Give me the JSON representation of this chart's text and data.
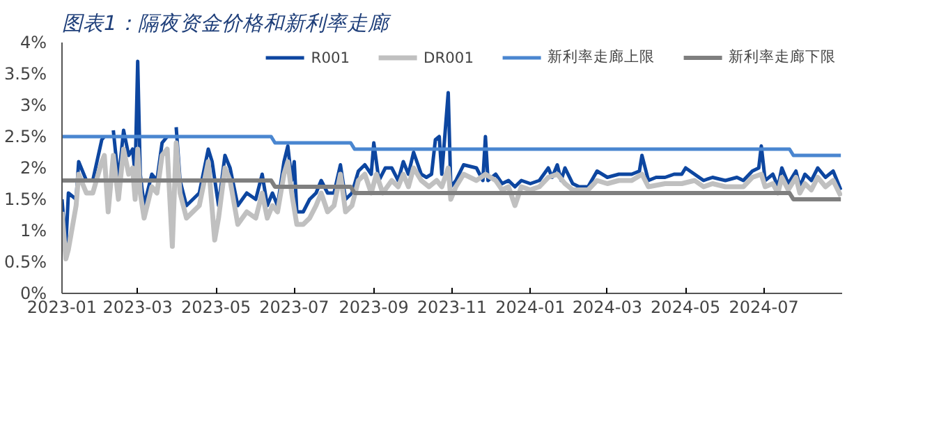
{
  "chart_data": {
    "type": "line",
    "title": "图表1：隔夜资金价格和新利率走廊",
    "xlim": [
      "2023-01-01",
      "2024-08-31"
    ],
    "xticks": [
      "2023-01",
      "2023-03",
      "2023-05",
      "2023-07",
      "2023-09",
      "2023-11",
      "2024-01",
      "2024-03",
      "2024-05",
      "2024-07"
    ],
    "ylim": [
      0,
      4
    ],
    "yticks": [
      {
        "value": 0,
        "label": "0%"
      },
      {
        "value": 0.5,
        "label": "0.5%"
      },
      {
        "value": 1,
        "label": "1%"
      },
      {
        "value": 1.5,
        "label": "1.5%"
      },
      {
        "value": 2,
        "label": "2%"
      },
      {
        "value": 2.5,
        "label": "2.5%"
      },
      {
        "value": 3,
        "label": "3%"
      },
      {
        "value": 3.5,
        "label": "3.5%"
      },
      {
        "value": 4,
        "label": "4%"
      }
    ],
    "grid": false,
    "legend": "top",
    "marker": "none",
    "line_style": "solid",
    "series": [
      {
        "name": "R001",
        "color": "#0d46a0",
        "x": [
          "2023-01-01",
          "2023-01-04",
          "2023-01-06",
          "2023-01-12",
          "2023-01-14",
          "2023-01-20",
          "2023-01-25",
          "2023-02-01",
          "2023-02-03",
          "2023-02-06",
          "2023-02-10",
          "2023-02-14",
          "2023-02-18",
          "2023-02-22",
          "2023-02-25",
          "2023-02-27",
          "2023-03-01",
          "2023-03-03",
          "2023-03-06",
          "2023-03-12",
          "2023-03-16",
          "2023-03-20",
          "2023-03-24",
          "2023-03-28",
          "2023-03-31",
          "2023-04-03",
          "2023-04-08",
          "2023-04-13",
          "2023-04-18",
          "2023-04-25",
          "2023-04-28",
          "2023-05-03",
          "2023-05-08",
          "2023-05-12",
          "2023-05-18",
          "2023-05-25",
          "2023-06-01",
          "2023-06-06",
          "2023-06-10",
          "2023-06-14",
          "2023-06-18",
          "2023-06-23",
          "2023-06-26",
          "2023-06-29",
          "2023-07-01",
          "2023-07-03",
          "2023-07-08",
          "2023-07-13",
          "2023-07-18",
          "2023-07-22",
          "2023-07-27",
          "2023-08-01",
          "2023-08-06",
          "2023-08-10",
          "2023-08-15",
          "2023-08-20",
          "2023-08-25",
          "2023-08-30",
          "2023-09-01",
          "2023-09-05",
          "2023-09-10",
          "2023-09-15",
          "2023-09-20",
          "2023-09-24",
          "2023-09-28",
          "2023-10-02",
          "2023-10-08",
          "2023-10-12",
          "2023-10-16",
          "2023-10-19",
          "2023-10-22",
          "2023-10-24",
          "2023-10-29",
          "2023-10-31",
          "2023-11-04",
          "2023-11-10",
          "2023-11-20",
          "2023-11-25",
          "2023-11-27",
          "2023-11-29",
          "2023-12-05",
          "2023-12-10",
          "2023-12-15",
          "2023-12-20",
          "2023-12-25",
          "2024-01-01",
          "2024-01-08",
          "2024-01-15",
          "2024-01-18",
          "2024-01-22",
          "2024-01-25",
          "2024-01-28",
          "2024-02-03",
          "2024-02-08",
          "2024-02-15",
          "2024-02-22",
          "2024-03-01",
          "2024-03-10",
          "2024-03-20",
          "2024-03-26",
          "2024-03-28",
          "2024-04-02",
          "2024-04-08",
          "2024-04-15",
          "2024-04-22",
          "2024-04-28",
          "2024-05-01",
          "2024-05-08",
          "2024-05-15",
          "2024-05-22",
          "2024-06-01",
          "2024-06-10",
          "2024-06-15",
          "2024-06-22",
          "2024-06-27",
          "2024-06-29",
          "2024-07-02",
          "2024-07-08",
          "2024-07-12",
          "2024-07-15",
          "2024-07-20",
          "2024-07-26",
          "2024-07-29",
          "2024-08-02",
          "2024-08-07",
          "2024-08-12",
          "2024-08-18",
          "2024-08-24",
          "2024-08-30"
        ],
        "values": [
          1.5,
          0.75,
          1.6,
          1.5,
          2.1,
          1.8,
          1.8,
          2.45,
          2.5,
          null,
          2.6,
          1.8,
          2.6,
          2.2,
          2.3,
          1.9,
          3.7,
          1.9,
          1.4,
          1.9,
          1.8,
          2.4,
          2.5,
          null,
          2.65,
          1.8,
          1.4,
          1.5,
          1.6,
          2.3,
          2.1,
          1.4,
          2.2,
          2.0,
          1.4,
          1.6,
          1.5,
          1.9,
          1.4,
          1.6,
          1.4,
          2.1,
          2.35,
          1.8,
          2.1,
          1.3,
          1.3,
          1.5,
          1.6,
          1.8,
          1.6,
          1.6,
          2.05,
          1.5,
          1.6,
          1.95,
          2.05,
          1.9,
          2.4,
          1.8,
          2.0,
          2.0,
          1.8,
          2.1,
          1.9,
          2.25,
          1.9,
          1.85,
          1.9,
          2.45,
          2.5,
          1.9,
          3.2,
          1.7,
          1.8,
          2.05,
          2.0,
          1.8,
          2.5,
          1.8,
          1.9,
          1.75,
          1.8,
          1.7,
          1.8,
          1.75,
          1.8,
          2.0,
          1.85,
          2.05,
          1.8,
          2.0,
          1.75,
          1.7,
          1.7,
          1.95,
          1.85,
          1.9,
          1.9,
          1.95,
          2.2,
          1.8,
          1.85,
          1.85,
          1.9,
          1.9,
          2.0,
          1.9,
          1.8,
          1.85,
          1.8,
          1.85,
          1.8,
          1.95,
          2.0,
          2.35,
          1.8,
          1.9,
          1.7,
          2.0,
          1.75,
          1.95,
          1.7,
          1.9,
          1.8,
          2.0,
          1.85,
          1.95,
          1.65
        ]
      },
      {
        "name": "DR001",
        "color": "#c0c0c0",
        "x": [
          "2023-01-01",
          "2023-01-04",
          "2023-01-06",
          "2023-01-12",
          "2023-01-14",
          "2023-01-20",
          "2023-01-25",
          "2023-02-01",
          "2023-02-03",
          "2023-02-06",
          "2023-02-10",
          "2023-02-14",
          "2023-02-18",
          "2023-02-22",
          "2023-02-25",
          "2023-02-27",
          "2023-03-01",
          "2023-03-03",
          "2023-03-06",
          "2023-03-12",
          "2023-03-16",
          "2023-03-20",
          "2023-03-24",
          "2023-03-28",
          "2023-03-31",
          "2023-04-03",
          "2023-04-08",
          "2023-04-13",
          "2023-04-18",
          "2023-04-25",
          "2023-04-30",
          "2023-05-03",
          "2023-05-08",
          "2023-05-12",
          "2023-05-18",
          "2023-05-25",
          "2023-06-01",
          "2023-06-06",
          "2023-06-10",
          "2023-06-14",
          "2023-06-18",
          "2023-06-23",
          "2023-06-26",
          "2023-06-29",
          "2023-07-03",
          "2023-07-08",
          "2023-07-13",
          "2023-07-18",
          "2023-07-22",
          "2023-07-27",
          "2023-08-01",
          "2023-08-06",
          "2023-08-10",
          "2023-08-15",
          "2023-08-20",
          "2023-08-25",
          "2023-08-30",
          "2023-09-03",
          "2023-09-08",
          "2023-09-15",
          "2023-09-20",
          "2023-09-24",
          "2023-09-28",
          "2023-10-02",
          "2023-10-08",
          "2023-10-14",
          "2023-10-20",
          "2023-10-24",
          "2023-10-29",
          "2023-10-31",
          "2023-11-04",
          "2023-11-10",
          "2023-11-20",
          "2023-11-27",
          "2023-12-05",
          "2023-12-10",
          "2023-12-15",
          "2023-12-20",
          "2023-12-25",
          "2024-01-01",
          "2024-01-08",
          "2024-01-15",
          "2024-01-22",
          "2024-01-28",
          "2024-02-03",
          "2024-02-15",
          "2024-02-22",
          "2024-03-01",
          "2024-03-10",
          "2024-03-20",
          "2024-03-28",
          "2024-04-02",
          "2024-04-15",
          "2024-04-28",
          "2024-05-08",
          "2024-05-15",
          "2024-05-22",
          "2024-06-01",
          "2024-06-15",
          "2024-06-22",
          "2024-06-29",
          "2024-07-02",
          "2024-07-08",
          "2024-07-12",
          "2024-07-15",
          "2024-07-20",
          "2024-07-26",
          "2024-07-29",
          "2024-08-02",
          "2024-08-07",
          "2024-08-12",
          "2024-08-18",
          "2024-08-24",
          "2024-08-30"
        ],
        "values": [
          1.3,
          0.55,
          0.7,
          1.4,
          1.9,
          1.6,
          1.6,
          2.1,
          2.2,
          1.3,
          2.2,
          1.5,
          2.3,
          1.9,
          2.0,
          1.5,
          2.3,
          1.6,
          1.2,
          1.7,
          1.6,
          2.2,
          2.3,
          0.75,
          2.4,
          1.6,
          1.2,
          1.3,
          1.4,
          2.1,
          0.85,
          1.2,
          2.0,
          1.8,
          1.1,
          1.3,
          1.2,
          1.6,
          1.2,
          1.4,
          1.3,
          1.9,
          2.1,
          1.6,
          1.1,
          1.1,
          1.2,
          1.4,
          1.6,
          1.3,
          1.4,
          1.9,
          1.3,
          1.4,
          1.8,
          1.9,
          1.6,
          1.9,
          1.6,
          1.8,
          1.7,
          1.9,
          1.7,
          2.0,
          1.8,
          1.7,
          1.8,
          1.7,
          2.0,
          1.5,
          1.7,
          1.9,
          1.8,
          1.9,
          1.8,
          1.65,
          1.7,
          1.4,
          1.7,
          1.65,
          1.7,
          1.85,
          1.9,
          1.75,
          1.65,
          1.65,
          1.8,
          1.75,
          1.8,
          1.8,
          1.9,
          1.7,
          1.75,
          1.75,
          1.8,
          1.7,
          1.75,
          1.7,
          1.7,
          1.85,
          1.9,
          1.7,
          1.75,
          1.6,
          1.85,
          1.65,
          1.85,
          1.6,
          1.75,
          1.65,
          1.85,
          1.7,
          1.8,
          1.55
        ]
      },
      {
        "name": "新利率走廊上限",
        "color": "#4a86d0",
        "x": [
          "2023-01-01",
          "2023-06-13",
          "2023-06-16",
          "2023-08-14",
          "2023-08-17",
          "2024-07-21",
          "2024-07-24",
          "2024-08-30"
        ],
        "values": [
          2.5,
          2.5,
          2.4,
          2.4,
          2.3,
          2.3,
          2.2,
          2.2
        ]
      },
      {
        "name": "新利率走廊下限",
        "color": "#7f7f7f",
        "x": [
          "2023-01-01",
          "2023-06-13",
          "2023-06-16",
          "2023-08-14",
          "2023-08-17",
          "2024-07-21",
          "2024-07-24",
          "2024-08-30"
        ],
        "values": [
          1.8,
          1.8,
          1.7,
          1.7,
          1.6,
          1.6,
          1.5,
          1.5
        ]
      }
    ]
  }
}
